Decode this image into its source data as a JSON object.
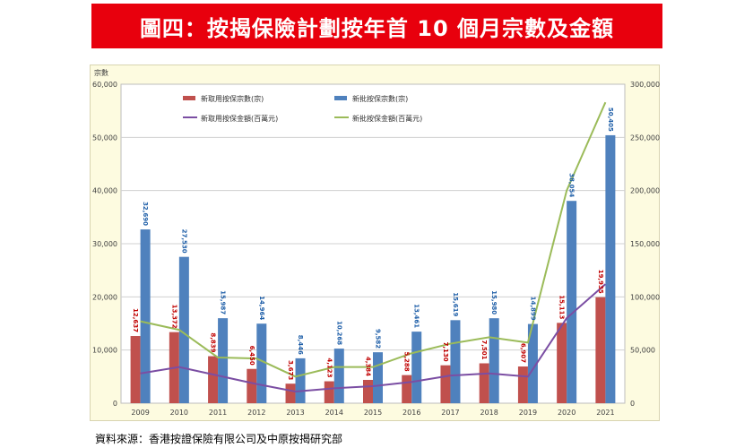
{
  "title": "圖四：按揭保險計劃按年首 10 個月宗數及金額",
  "source": "資料來源：香港按證保險有限公司及中原按揭研究部",
  "colors": {
    "title_bg": "#e8000d",
    "panel_bg": "#fdfbe0",
    "bar_new_use": "#c0504d",
    "bar_new_approved": "#4f81bd",
    "line_new_use_amount": "#7b4ea3",
    "line_new_approved_amount": "#9bbb59",
    "label_red": "#c00000",
    "label_blue": "#1f5fa8"
  },
  "chart_data": {
    "type": "bar",
    "categories": [
      "2009",
      "2010",
      "2011",
      "2012",
      "2013",
      "2014",
      "2015",
      "2016",
      "2017",
      "2018",
      "2019",
      "2020",
      "2021"
    ],
    "ylabel": "宗數",
    "ylim": [
      0,
      60000
    ],
    "y_ticks": [
      "0",
      "10,000",
      "20,000",
      "30,000",
      "40,000",
      "50,000",
      "60,000"
    ],
    "y2lim": [
      0,
      300000
    ],
    "y2_ticks": [
      "0",
      "50,000",
      "100,000",
      "150,000",
      "200,000",
      "250,000",
      "300,000"
    ],
    "grid": true,
    "series": [
      {
        "name": "新取用按保宗數(宗)",
        "kind": "bar",
        "axis": "left",
        "color": "#c0504d",
        "values": [
          12637,
          13372,
          8839,
          6450,
          3673,
          4123,
          4384,
          5288,
          7130,
          7501,
          6907,
          15113,
          19935
        ],
        "labels": [
          "12,637",
          "13,372",
          "8,839",
          "6,450",
          "3,673",
          "4,123",
          "4,384",
          "5,288",
          "7,130",
          "7,501",
          "6,907",
          "15,113",
          "19,935"
        ]
      },
      {
        "name": "新批按保宗數(宗)",
        "kind": "bar",
        "axis": "left",
        "color": "#4f81bd",
        "values": [
          32690,
          27530,
          15987,
          14964,
          8446,
          10268,
          9582,
          13461,
          15619,
          15980,
          14899,
          38054,
          50405
        ],
        "labels": [
          "32,690",
          "27,530",
          "15,987",
          "14,964",
          "8,446",
          "10,268",
          "9,582",
          "13,461",
          "15,619",
          "15,980",
          "14,899",
          "38,054",
          "50,405"
        ]
      },
      {
        "name": "新取用按保金額(百萬元)",
        "kind": "line",
        "axis": "right",
        "color": "#7b4ea3",
        "values": [
          28000,
          34000,
          26000,
          18000,
          11000,
          14000,
          16000,
          20000,
          26000,
          28000,
          25000,
          80000,
          112000
        ]
      },
      {
        "name": "新批按保金額(百萬元)",
        "kind": "line",
        "axis": "right",
        "color": "#9bbb59",
        "values": [
          77000,
          69000,
          43000,
          42000,
          25000,
          34000,
          34000,
          47000,
          56000,
          62000,
          57000,
          200000,
          283000
        ]
      }
    ],
    "legend_position": "top"
  }
}
